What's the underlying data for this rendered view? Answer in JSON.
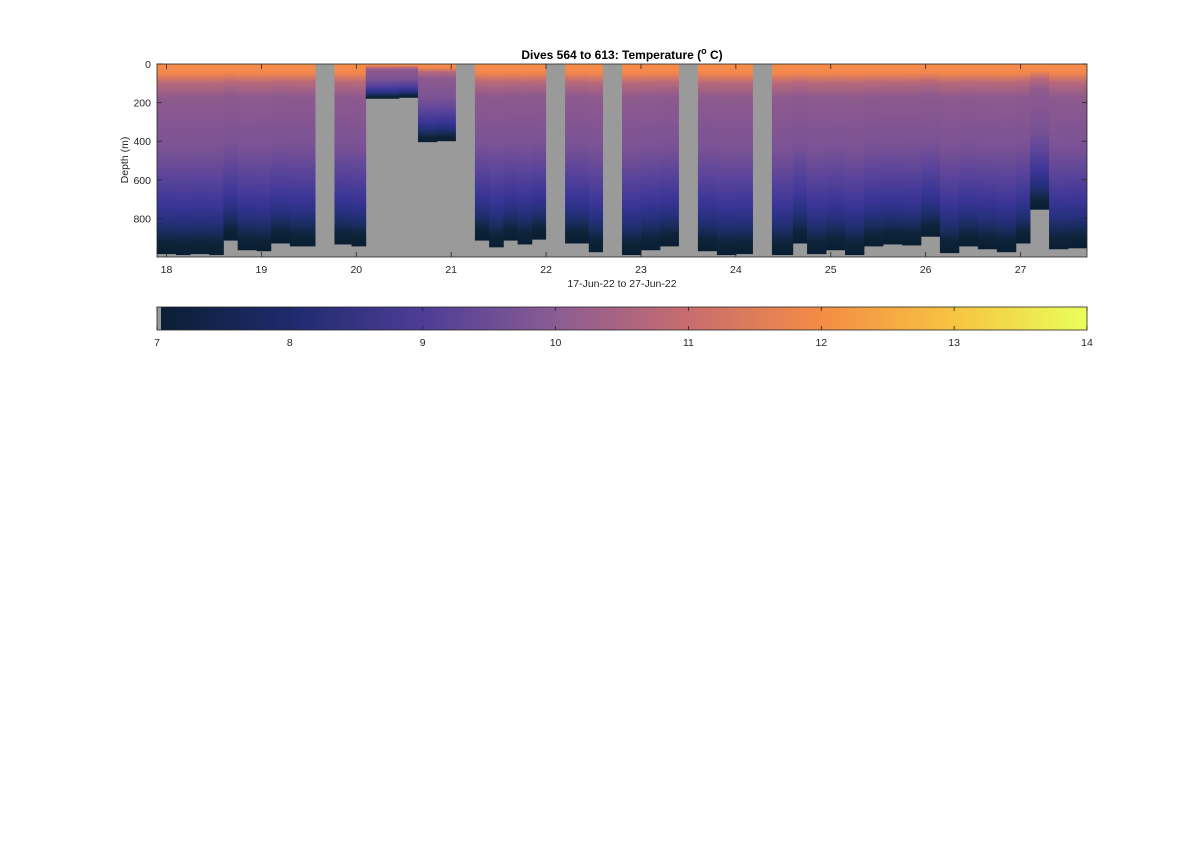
{
  "chart_data": {
    "type": "heatmap",
    "title": {
      "prefix": "Dives 564 to 613: Temperature (",
      "superscript": "o",
      "suffix": " C)"
    },
    "ylabel": "Depth (m)",
    "xlabel": "17-Jun-22 to 27-Jun-22",
    "x_tick_labels": [
      "18",
      "19",
      "20",
      "21",
      "22",
      "23",
      "24",
      "25",
      "26",
      "27"
    ],
    "x_tick_values": [
      18,
      19,
      20,
      21,
      22,
      23,
      24,
      25,
      26,
      27
    ],
    "xlim": [
      17.9,
      27.7
    ],
    "y_tick_labels": [
      "0",
      "200",
      "400",
      "600",
      "800"
    ],
    "y_tick_values": [
      0,
      200,
      400,
      600,
      800
    ],
    "ylim": [
      0,
      1000
    ],
    "y_reversed": true,
    "colorbar": {
      "tick_labels": [
        "7",
        "8",
        "9",
        "10",
        "11",
        "12",
        "13",
        "14"
      ],
      "tick_values": [
        7,
        8,
        9,
        10,
        11,
        12,
        13,
        14
      ],
      "range": [
        7,
        14
      ],
      "colormap": [
        "#0a1e33",
        "#1f2a6e",
        "#4d3d96",
        "#8b5c93",
        "#c86d6f",
        "#f48c45",
        "#f7c441",
        "#eaff5a"
      ]
    },
    "missing_color": "#9a9a9a",
    "profiles": [
      {
        "x0": 17.9,
        "x1": 18.1,
        "bottom": 985
      },
      {
        "x0": 18.1,
        "x1": 18.25,
        "bottom": 990
      },
      {
        "x0": 18.25,
        "x1": 18.45,
        "bottom": 985
      },
      {
        "x0": 18.45,
        "x1": 18.6,
        "bottom": 990
      },
      {
        "x0": 18.6,
        "x1": 18.75,
        "bottom": 915
      },
      {
        "x0": 18.75,
        "x1": 18.95,
        "bottom": 965
      },
      {
        "x0": 18.95,
        "x1": 19.1,
        "bottom": 970
      },
      {
        "x0": 19.1,
        "x1": 19.3,
        "bottom": 930
      },
      {
        "x0": 19.3,
        "x1": 19.45,
        "bottom": 945
      },
      {
        "x0": 19.45,
        "x1": 19.57,
        "bottom": 945
      },
      {
        "x0": 19.57,
        "x1": 19.77,
        "gap": true
      },
      {
        "x0": 19.77,
        "x1": 19.95,
        "bottom": 935
      },
      {
        "x0": 19.95,
        "x1": 20.1,
        "bottom": 945
      },
      {
        "x0": 20.1,
        "x1": 20.45,
        "bottom": 180
      },
      {
        "x0": 20.45,
        "x1": 20.65,
        "bottom": 175
      },
      {
        "x0": 20.65,
        "x1": 20.85,
        "bottom": 405
      },
      {
        "x0": 20.85,
        "x1": 21.05,
        "bottom": 400
      },
      {
        "x0": 21.05,
        "x1": 21.25,
        "gap": true
      },
      {
        "x0": 21.25,
        "x1": 21.4,
        "bottom": 915
      },
      {
        "x0": 21.4,
        "x1": 21.55,
        "bottom": 950
      },
      {
        "x0": 21.55,
        "x1": 21.7,
        "bottom": 915
      },
      {
        "x0": 21.7,
        "x1": 21.85,
        "bottom": 935
      },
      {
        "x0": 21.85,
        "x1": 22.0,
        "bottom": 910
      },
      {
        "x0": 22.0,
        "x1": 22.2,
        "gap": true
      },
      {
        "x0": 22.2,
        "x1": 22.45,
        "bottom": 930
      },
      {
        "x0": 22.45,
        "x1": 22.6,
        "bottom": 975
      },
      {
        "x0": 22.6,
        "x1": 22.8,
        "gap": true
      },
      {
        "x0": 22.8,
        "x1": 23.0,
        "bottom": 990
      },
      {
        "x0": 23.0,
        "x1": 23.2,
        "bottom": 965
      },
      {
        "x0": 23.2,
        "x1": 23.4,
        "bottom": 945
      },
      {
        "x0": 23.4,
        "x1": 23.6,
        "gap": true
      },
      {
        "x0": 23.6,
        "x1": 23.8,
        "bottom": 970
      },
      {
        "x0": 23.8,
        "x1": 24.0,
        "bottom": 990
      },
      {
        "x0": 24.0,
        "x1": 24.18,
        "bottom": 985
      },
      {
        "x0": 24.18,
        "x1": 24.38,
        "gap": true
      },
      {
        "x0": 24.38,
        "x1": 24.6,
        "bottom": 990
      },
      {
        "x0": 24.6,
        "x1": 24.75,
        "bottom": 930
      },
      {
        "x0": 24.75,
        "x1": 24.95,
        "bottom": 985
      },
      {
        "x0": 24.95,
        "x1": 25.15,
        "bottom": 965
      },
      {
        "x0": 25.15,
        "x1": 25.35,
        "bottom": 990
      },
      {
        "x0": 25.35,
        "x1": 25.55,
        "bottom": 945
      },
      {
        "x0": 25.55,
        "x1": 25.75,
        "bottom": 935
      },
      {
        "x0": 25.75,
        "x1": 25.95,
        "bottom": 940
      },
      {
        "x0": 25.95,
        "x1": 26.15,
        "bottom": 895
      },
      {
        "x0": 26.15,
        "x1": 26.35,
        "bottom": 980
      },
      {
        "x0": 26.35,
        "x1": 26.55,
        "bottom": 945
      },
      {
        "x0": 26.55,
        "x1": 26.75,
        "bottom": 960
      },
      {
        "x0": 26.75,
        "x1": 26.95,
        "bottom": 975
      },
      {
        "x0": 26.95,
        "x1": 27.1,
        "bottom": 930
      },
      {
        "x0": 27.1,
        "x1": 27.3,
        "bottom": 755
      },
      {
        "x0": 27.3,
        "x1": 27.5,
        "bottom": 960
      },
      {
        "x0": 27.5,
        "x1": 27.7,
        "bottom": 955
      }
    ]
  }
}
